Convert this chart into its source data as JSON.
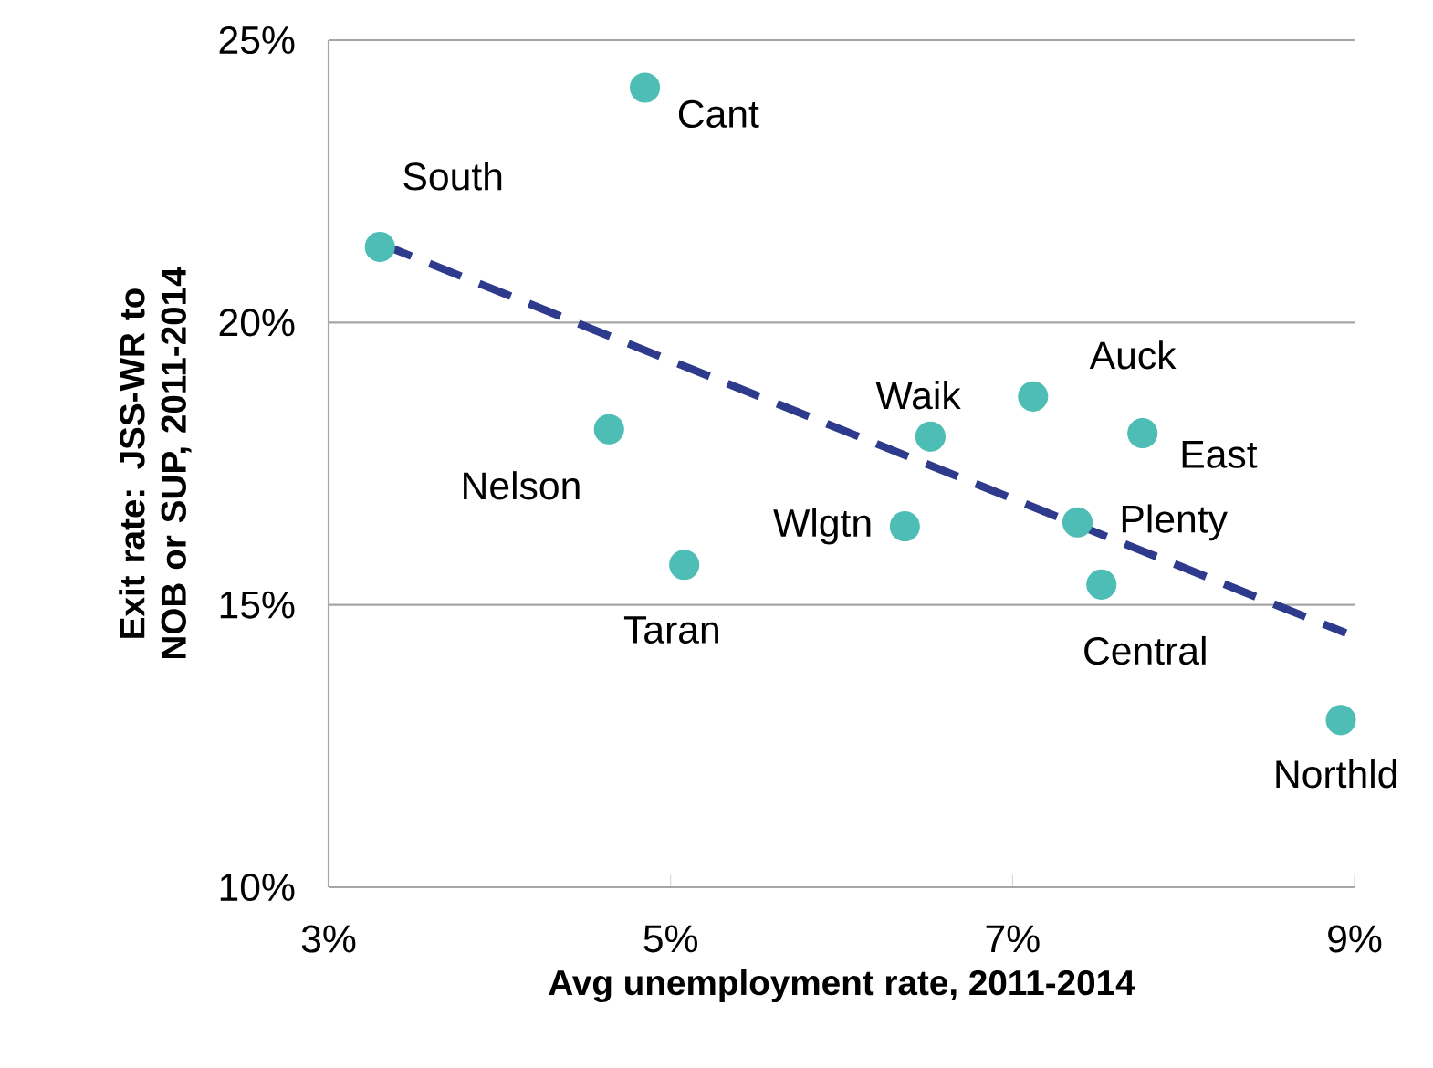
{
  "chart_data": {
    "type": "scatter",
    "xlabel": "Avg unemployment rate, 2011-2014",
    "ylabel": "Exit rate: JSS-WR to NOB or SUP, 2011-2014",
    "xlim": [
      3,
      9
    ],
    "ylim": [
      10,
      25
    ],
    "xticks": [
      {
        "value": 3,
        "label": "3%"
      },
      {
        "value": 5,
        "label": "5%"
      },
      {
        "value": 7,
        "label": "7%"
      },
      {
        "value": 9,
        "label": "9%"
      }
    ],
    "yticks": [
      {
        "value": 10,
        "label": "10%"
      },
      {
        "value": 15,
        "label": "15%"
      },
      {
        "value": 20,
        "label": "20%"
      },
      {
        "value": 25,
        "label": "25%"
      }
    ],
    "grid": "y",
    "series": [
      {
        "type": "scatter",
        "color": "#4dbdb5",
        "marker": "circle",
        "x": [
          3.3,
          4.85,
          4.64,
          5.08,
          6.37,
          6.52,
          7.12,
          7.76,
          7.38,
          7.52,
          8.92
        ],
        "values": [
          21.34,
          24.16,
          18.11,
          15.71,
          16.39,
          17.98,
          18.69,
          18.04,
          16.46,
          15.36,
          12.96
        ]
      },
      {
        "type": "line",
        "color": "#2e3a8c",
        "line_style": "dashed",
        "marker": "none",
        "x": [
          3.3,
          8.95
        ],
        "values": [
          21.4,
          14.5
        ]
      }
    ],
    "annotations": [
      {
        "text": "South",
        "x": 3.3,
        "y": 21.34
      },
      {
        "text": "Cant",
        "x": 4.85,
        "y": 24.16
      },
      {
        "text": "Nelson",
        "x": 4.64,
        "y": 18.11
      },
      {
        "text": "Taran",
        "x": 5.08,
        "y": 15.71
      },
      {
        "text": "Wlgtn",
        "x": 6.37,
        "y": 16.39
      },
      {
        "text": "Waik",
        "x": 6.52,
        "y": 17.98
      },
      {
        "text": "Auck",
        "x": 7.12,
        "y": 18.69
      },
      {
        "text": "East",
        "x": 7.76,
        "y": 18.04
      },
      {
        "text": "Plenty",
        "x": 7.38,
        "y": 16.46
      },
      {
        "text": "Central",
        "x": 7.52,
        "y": 15.36
      },
      {
        "text": "Northld",
        "x": 8.92,
        "y": 12.96
      }
    ]
  }
}
